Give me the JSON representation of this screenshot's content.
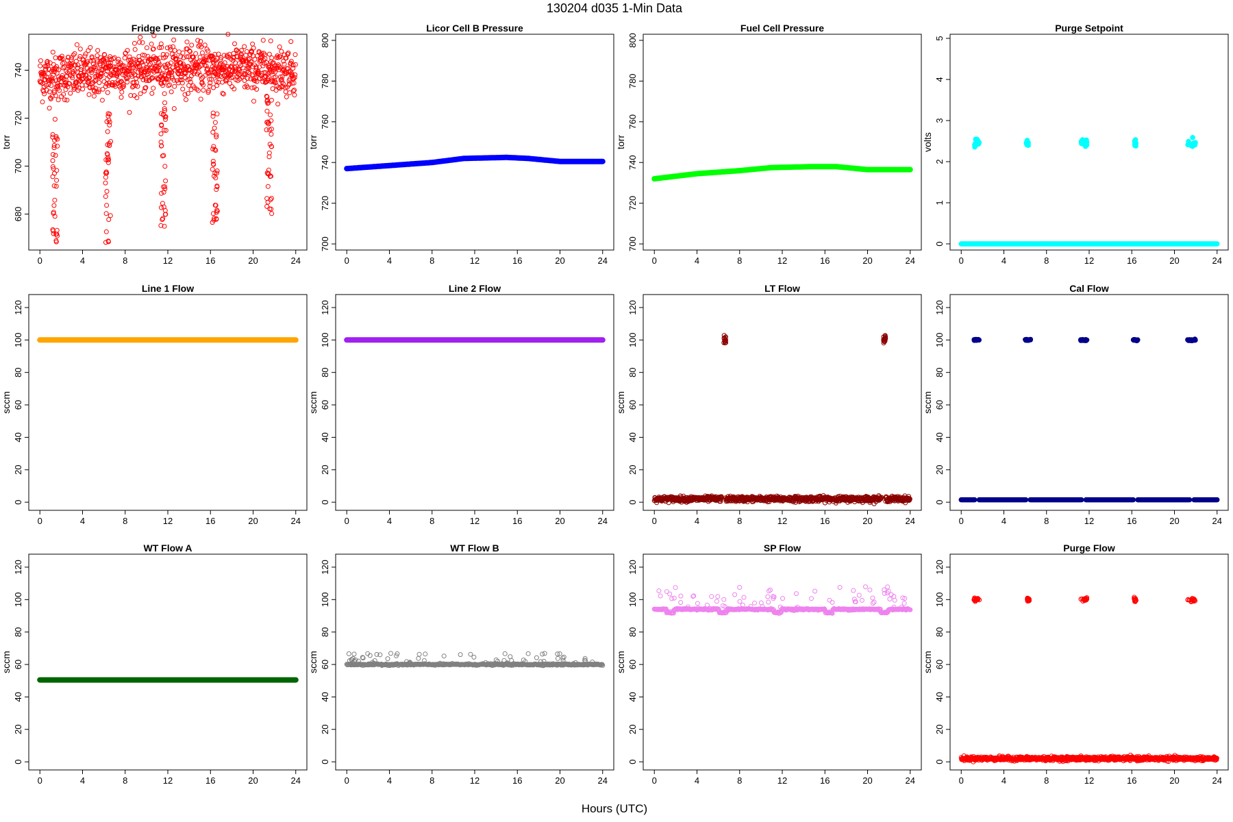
{
  "figure": {
    "title": "130204   d035   1-Min Data",
    "xlabel": "Hours (UTC)"
  },
  "chart_data": [
    {
      "type": "scatter",
      "title": "Fridge Pressure",
      "ylabel": "torr",
      "xlim": [
        0,
        24
      ],
      "ylim": [
        665,
        755
      ],
      "xticks": [
        0,
        4,
        8,
        12,
        16,
        20,
        24
      ],
      "yticks": [
        680,
        700,
        720,
        740
      ],
      "color": "#ff0000",
      "marker": "open",
      "base": {
        "kind": "band",
        "knots": [
          [
            0,
            737
          ],
          [
            12,
            741
          ],
          [
            24,
            740
          ]
        ],
        "spread": 10
      },
      "extra": [
        {
          "center": 1.4,
          "range": [
            667,
            720
          ]
        },
        {
          "center": 6.4,
          "range": [
            668,
            722
          ]
        },
        {
          "center": 11.6,
          "range": [
            672,
            724
          ]
        },
        {
          "center": 16.4,
          "range": [
            676,
            724
          ]
        },
        {
          "center": 21.5,
          "range": [
            680,
            728
          ]
        }
      ]
    },
    {
      "type": "line",
      "title": "Licor Cell B Pressure",
      "ylabel": "torr",
      "xlim": [
        0,
        24
      ],
      "ylim": [
        697,
        803
      ],
      "xticks": [
        0,
        4,
        8,
        12,
        16,
        20,
        24
      ],
      "yticks": [
        700,
        720,
        740,
        760,
        780,
        800
      ],
      "color": "#0000ff",
      "series": {
        "x": [
          0,
          4,
          8,
          11,
          15,
          17,
          20,
          24
        ],
        "y": [
          737,
          738.5,
          740,
          742,
          742.5,
          742,
          740.5,
          740.5
        ]
      }
    },
    {
      "type": "line",
      "title": "Fuel Cell Pressure",
      "ylabel": "torr",
      "xlim": [
        0,
        24
      ],
      "ylim": [
        697,
        803
      ],
      "xticks": [
        0,
        4,
        8,
        12,
        16,
        20,
        24
      ],
      "yticks": [
        700,
        720,
        740,
        760,
        780,
        800
      ],
      "color": "#00ff00",
      "series": {
        "x": [
          0,
          4,
          8,
          11,
          15,
          17,
          20,
          24
        ],
        "y": [
          732,
          734.5,
          736,
          737.5,
          738,
          738,
          736.5,
          736.5
        ]
      }
    },
    {
      "type": "scatter",
      "title": "Purge Setpoint",
      "ylabel": "volts",
      "xlim": [
        0,
        24
      ],
      "ylim": [
        -0.15,
        5.1
      ],
      "xticks": [
        0,
        4,
        8,
        12,
        16,
        20,
        24
      ],
      "yticks": [
        0,
        1,
        2,
        3,
        4,
        5
      ],
      "color": "#00ffff",
      "marker": "filled",
      "base": {
        "kind": "flat",
        "value": 0
      },
      "clusters": [
        {
          "x": [
            1.2,
            1.7
          ],
          "y": 2.45,
          "jitter": 0.05
        },
        {
          "x": 6.1,
          "y": 2.45,
          "jitter": 0.04
        },
        {
          "x": [
            11.2,
            11.8
          ],
          "y": 2.45,
          "jitter": 0.05
        },
        {
          "x": 16.2,
          "y": 2.45,
          "jitter": 0.04
        },
        {
          "x": [
            21.2,
            22.0
          ],
          "y": 2.45,
          "jitter": 0.05
        }
      ]
    },
    {
      "type": "line",
      "title": "Line 1 Flow",
      "ylabel": "sccm",
      "xlim": [
        0,
        24
      ],
      "ylim": [
        -5,
        128
      ],
      "xticks": [
        0,
        4,
        8,
        12,
        16,
        20,
        24
      ],
      "yticks": [
        0,
        20,
        40,
        60,
        80,
        100,
        120
      ],
      "color": "#ffa500",
      "series": {
        "x": [
          0,
          24
        ],
        "y": [
          100,
          100
        ]
      }
    },
    {
      "type": "line",
      "title": "Line 2 Flow",
      "ylabel": "sccm",
      "xlim": [
        0,
        24
      ],
      "ylim": [
        -5,
        128
      ],
      "xticks": [
        0,
        4,
        8,
        12,
        16,
        20,
        24
      ],
      "yticks": [
        0,
        20,
        40,
        60,
        80,
        100,
        120
      ],
      "color": "#a020f0",
      "series": {
        "x": [
          0,
          24
        ],
        "y": [
          100,
          100
        ]
      }
    },
    {
      "type": "scatter",
      "title": "LT Flow",
      "ylabel": "sccm",
      "xlim": [
        0,
        24
      ],
      "ylim": [
        -5,
        128
      ],
      "xticks": [
        0,
        4,
        8,
        12,
        16,
        20,
        24
      ],
      "yticks": [
        0,
        20,
        40,
        60,
        80,
        100,
        120
      ],
      "color": "#8b0000",
      "marker": "open",
      "base": {
        "kind": "band",
        "knots": [
          [
            0,
            2
          ],
          [
            24,
            2
          ]
        ],
        "spread": 1.6,
        "gaps": [
          6.5,
          21.5
        ]
      },
      "clusters": [
        {
          "x": 6.5,
          "y": 100,
          "jitter": 1.5
        },
        {
          "x": 21.5,
          "y": 100,
          "jitter": 1.5
        }
      ]
    },
    {
      "type": "scatter",
      "title": "Cal Flow",
      "ylabel": "sccm",
      "xlim": [
        0,
        24
      ],
      "ylim": [
        -5,
        128
      ],
      "xticks": [
        0,
        4,
        8,
        12,
        16,
        20,
        24
      ],
      "yticks": [
        0,
        20,
        40,
        60,
        80,
        100,
        120
      ],
      "color": "#00008b",
      "marker": "filled",
      "base": {
        "kind": "flat",
        "value": 1.5,
        "gaps": [
          1.45,
          6.25,
          11.5,
          16.35,
          21.6
        ]
      },
      "clusters": [
        {
          "x": [
            1.2,
            1.7
          ],
          "y": 100,
          "jitter": 0.2
        },
        {
          "x": [
            6.0,
            6.5
          ],
          "y": 100,
          "jitter": 0.2
        },
        {
          "x": [
            11.2,
            11.8
          ],
          "y": 100,
          "jitter": 0.2
        },
        {
          "x": [
            16.1,
            16.6
          ],
          "y": 100,
          "jitter": 0.2
        },
        {
          "x": [
            21.2,
            22.0
          ],
          "y": 100,
          "jitter": 0.2
        }
      ]
    },
    {
      "type": "line",
      "title": "WT Flow A",
      "ylabel": "sccm",
      "xlim": [
        0,
        24
      ],
      "ylim": [
        -5,
        128
      ],
      "xticks": [
        0,
        4,
        8,
        12,
        16,
        20,
        24
      ],
      "yticks": [
        0,
        20,
        40,
        60,
        80,
        100,
        120
      ],
      "color": "#006400",
      "series": {
        "x": [
          0,
          24
        ],
        "y": [
          50.5,
          50.5
        ]
      }
    },
    {
      "type": "scatter",
      "title": "WT Flow B",
      "ylabel": "sccm",
      "xlim": [
        0,
        24
      ],
      "ylim": [
        -5,
        128
      ],
      "xticks": [
        0,
        4,
        8,
        12,
        16,
        20,
        24
      ],
      "yticks": [
        0,
        20,
        40,
        60,
        80,
        100,
        120
      ],
      "color": "#808080",
      "marker": "open",
      "base": {
        "kind": "flat",
        "value": 60
      },
      "extra": [
        {
          "center": 12,
          "halfwidth": 12,
          "range": [
            61,
            67
          ],
          "count": 60
        }
      ]
    },
    {
      "type": "scatter",
      "title": "SP Flow",
      "ylabel": "sccm",
      "xlim": [
        0,
        24
      ],
      "ylim": [
        -5,
        128
      ],
      "xticks": [
        0,
        4,
        8,
        12,
        16,
        20,
        24
      ],
      "yticks": [
        0,
        20,
        40,
        60,
        80,
        100,
        120
      ],
      "color": "#ee82ee",
      "marker": "open",
      "base": {
        "kind": "flat",
        "value": 94,
        "dips": [
          1.5,
          6.4,
          11.6,
          16.4,
          21.6
        ],
        "dip_value": 92
      },
      "extra": [
        {
          "center": 12,
          "halfwidth": 12,
          "range": [
            95,
            108
          ],
          "count": 70
        }
      ]
    },
    {
      "type": "scatter",
      "title": "Purge Flow",
      "ylabel": "sccm",
      "xlim": [
        0,
        24
      ],
      "ylim": [
        -5,
        128
      ],
      "xticks": [
        0,
        4,
        8,
        12,
        16,
        20,
        24
      ],
      "yticks": [
        0,
        20,
        40,
        60,
        80,
        100,
        120
      ],
      "color": "#ff0000",
      "marker": "open",
      "base": {
        "kind": "band",
        "knots": [
          [
            0,
            2
          ],
          [
            24,
            2
          ]
        ],
        "spread": 1.2
      },
      "clusters": [
        {
          "x": [
            1.2,
            1.7
          ],
          "y": 100,
          "jitter": 0.6
        },
        {
          "x": 6.2,
          "y": 100,
          "jitter": 0.6
        },
        {
          "x": [
            11.2,
            11.8
          ],
          "y": 100,
          "jitter": 0.6
        },
        {
          "x": 16.2,
          "y": 100,
          "jitter": 0.6
        },
        {
          "x": [
            21.2,
            22.0
          ],
          "y": 100,
          "jitter": 0.6
        }
      ]
    }
  ]
}
